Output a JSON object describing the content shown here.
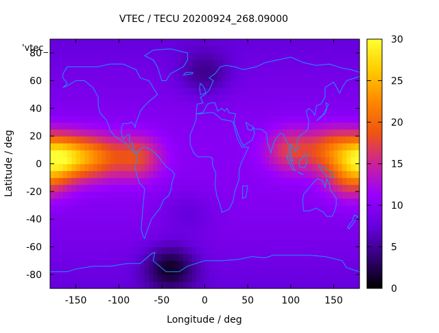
{
  "chart_data": {
    "type": "heatmap",
    "title": "VTEC / TECU 20200924_268.09000",
    "xlabel": "Longitude / deg",
    "ylabel": "Latitude / deg",
    "xlim": [
      -180,
      180
    ],
    "ylim": [
      -90,
      90
    ],
    "x_ticks": [
      -150,
      -100,
      -50,
      0,
      50,
      100,
      150
    ],
    "y_ticks": [
      -80,
      -60,
      -40,
      -20,
      0,
      20,
      40,
      60,
      80
    ],
    "colorbar": {
      "range": [
        0,
        30
      ],
      "ticks": [
        0,
        5,
        10,
        15,
        20,
        25,
        30
      ],
      "palette": [
        "#000000",
        "#330077",
        "#6600dd",
        "#9900ff",
        "#cc2299",
        "#ee5511",
        "#ff8800",
        "#ffcc00",
        "#ffff33"
      ]
    },
    "legend_key": "'vtec_",
    "legend_position": "top-left",
    "overlay": "coastlines",
    "overlay_color": "#1e90ff",
    "grid": false,
    "cells": {
      "lon_step": 5,
      "lat_step": 5,
      "description_of_field": "VTEC in TECU"
    },
    "anomaly_centres": [
      {
        "lon": -170,
        "lat": 5,
        "value": 25
      },
      {
        "lon": -130,
        "lat": 5,
        "value": 19
      },
      {
        "lon": -80,
        "lat": 5,
        "value": 17
      },
      {
        "lon": 100,
        "lat": 10,
        "value": 16
      },
      {
        "lon": 150,
        "lat": 10,
        "value": 18
      },
      {
        "lon": 170,
        "lat": -10,
        "value": 16
      },
      {
        "lon": 0,
        "lat": 0,
        "value": 9
      },
      {
        "lon": -40,
        "lat": -75,
        "value": 2
      },
      {
        "lon": 0,
        "lat": 65,
        "value": 5
      },
      {
        "lon": -20,
        "lat": -35,
        "value": 7
      }
    ]
  }
}
